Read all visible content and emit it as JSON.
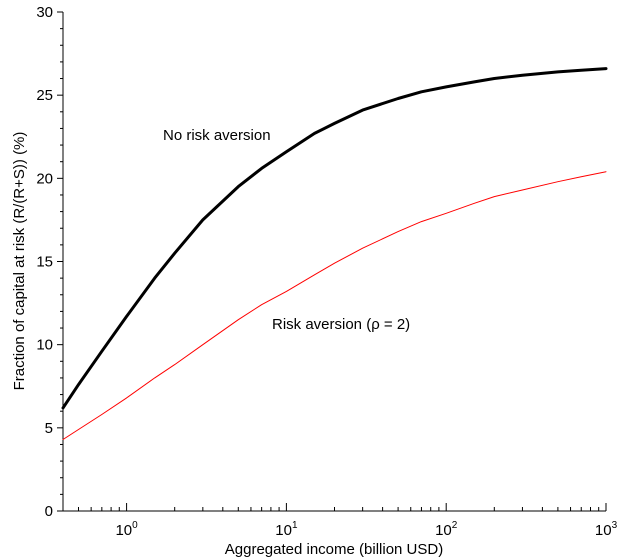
{
  "chart_data": {
    "type": "line",
    "xscale": "log",
    "xlabel": "Aggregated income (billion USD)",
    "ylabel": "Fraction of capital at risk (R/(R+S)) (%)",
    "xlim": [
      0.4,
      1000
    ],
    "ylim": [
      0,
      30
    ],
    "grid": false,
    "x_ticks": [
      {
        "value": 1,
        "base": "10",
        "exp": "0"
      },
      {
        "value": 10,
        "base": "10",
        "exp": "1"
      },
      {
        "value": 100,
        "base": "10",
        "exp": "2"
      },
      {
        "value": 1000,
        "base": "10",
        "exp": "3"
      }
    ],
    "y_ticks": [
      0,
      5,
      10,
      15,
      20,
      25,
      30
    ],
    "y_tick_labels": [
      "0",
      "5",
      "10",
      "15",
      "20",
      "25",
      "30"
    ],
    "series": [
      {
        "name": "No risk aversion",
        "color": "#000000",
        "line_width": "thick",
        "x": [
          0.4,
          0.5,
          0.7,
          1,
          1.5,
          2,
          3,
          5,
          7,
          10,
          15,
          20,
          30,
          50,
          70,
          100,
          150,
          200,
          300,
          500,
          700,
          1000
        ],
        "y": [
          6.2,
          7.6,
          9.6,
          11.7,
          14.0,
          15.5,
          17.5,
          19.5,
          20.6,
          21.6,
          22.7,
          23.3,
          24.1,
          24.8,
          25.2,
          25.5,
          25.8,
          26.0,
          26.2,
          26.4,
          26.5,
          26.6
        ]
      },
      {
        "name": "Risk aversion (ρ = 2)",
        "color": "#ff0000",
        "line_width": "thin",
        "x": [
          0.4,
          0.5,
          0.7,
          1,
          1.5,
          2,
          3,
          5,
          7,
          10,
          15,
          20,
          30,
          50,
          70,
          100,
          150,
          200,
          300,
          500,
          700,
          1000
        ],
        "y": [
          4.3,
          4.9,
          5.8,
          6.8,
          8.0,
          8.8,
          10.0,
          11.5,
          12.4,
          13.2,
          14.2,
          14.9,
          15.8,
          16.8,
          17.4,
          17.9,
          18.5,
          18.9,
          19.3,
          19.8,
          20.1,
          20.4
        ]
      }
    ]
  }
}
